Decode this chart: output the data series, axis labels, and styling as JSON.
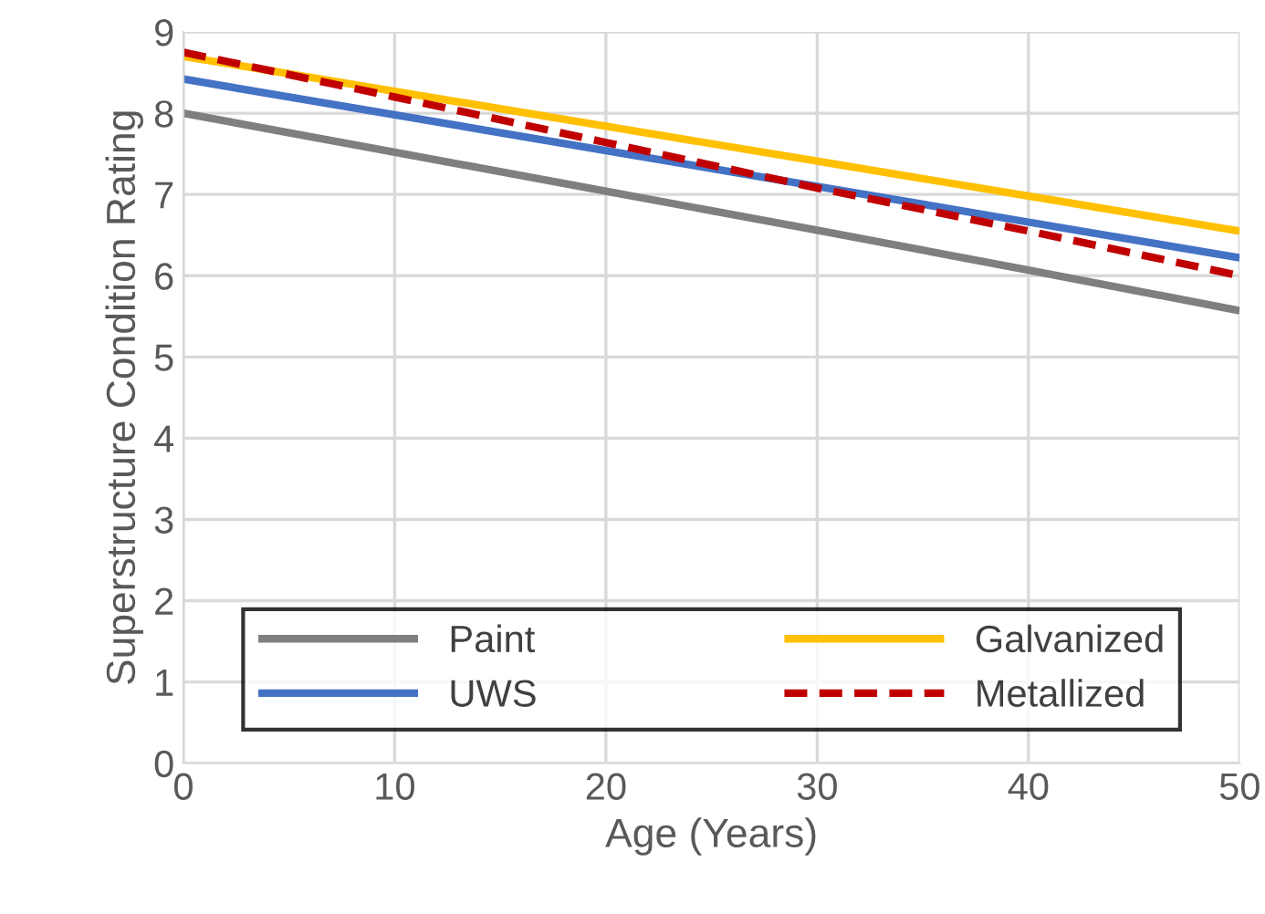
{
  "chart_data": {
    "type": "line",
    "xlabel": "Age (Years)",
    "ylabel": "Superstructure Condition Rating",
    "x": [
      0,
      10,
      20,
      30,
      40,
      50
    ],
    "series": [
      {
        "name": "Paint",
        "color": "#7f7f7f",
        "values": [
          8.0,
          7.52,
          7.04,
          6.56,
          6.07,
          5.57
        ]
      },
      {
        "name": "UWS",
        "color": "#4472c4",
        "values": [
          8.42,
          7.98,
          7.54,
          7.1,
          6.66,
          6.22
        ]
      },
      {
        "name": "Galvanized",
        "color": "#ffc000",
        "values": [
          8.7,
          8.27,
          7.84,
          7.41,
          6.98,
          6.55
        ]
      },
      {
        "name": "Metallized",
        "color": "#c00000",
        "line_style": "dashed",
        "values": [
          8.75,
          8.2,
          7.64,
          7.08,
          6.55,
          6.0
        ]
      }
    ],
    "xlim": [
      0,
      50
    ],
    "xticks": [
      0,
      10,
      20,
      30,
      40,
      50
    ],
    "ylim": [
      0,
      9
    ],
    "yticks": [
      0,
      1,
      2,
      3,
      4,
      5,
      6,
      7,
      8,
      9
    ],
    "grid": true,
    "legend": "bottom",
    "marker": "none",
    "line_style": "solid"
  }
}
